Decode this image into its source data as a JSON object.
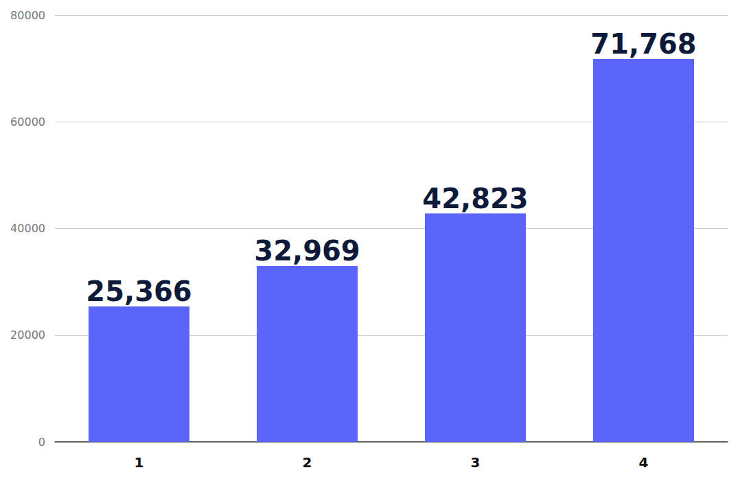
{
  "chart_data": {
    "type": "bar",
    "categories": [
      "1",
      "2",
      "3",
      "4"
    ],
    "values": [
      25366,
      32969,
      42823,
      71768
    ],
    "value_labels": [
      "25,366",
      "32,969",
      "42,823",
      "71,768"
    ],
    "data_labels": true,
    "color": "#5a64f8",
    "ylim": [
      0,
      80000
    ],
    "yticks": [
      0,
      20000,
      40000,
      60000,
      80000
    ],
    "grid": true
  }
}
